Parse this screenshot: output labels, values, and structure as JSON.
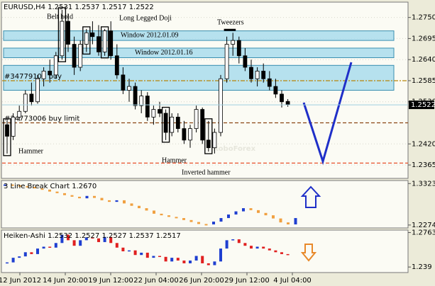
{
  "chart_data": [
    {
      "type": "candlestick",
      "title": "EURUSD,H4 1.2531 1.2537 1.2517 1.2522",
      "watermark": "RoboForex",
      "ylim": [
        1.233,
        1.279
      ],
      "yticks": [
        {
          "value": 1.275,
          "label": "1.2750"
        },
        1.2695,
        {
          "value": 1.264,
          "label": "1.2640"
        },
        1.2585,
        {
          "value": 1.253,
          "label": "1.2530"
        },
        {
          "value": 1.242,
          "label": "1.2420"
        },
        1.2365
      ],
      "current_price": 1.2522,
      "candle_up_color": "#ffffff",
      "candle_down_color": "#000000",
      "candles": [
        [
          1.247,
          1.248,
          1.2395,
          1.244
        ],
        [
          1.244,
          1.25,
          1.243,
          1.249
        ],
        [
          1.249,
          1.252,
          1.248,
          1.2505
        ],
        [
          1.2505,
          1.256,
          1.25,
          1.255
        ],
        [
          1.255,
          1.258,
          1.252,
          1.253
        ],
        [
          1.253,
          1.26,
          1.2525,
          1.259
        ],
        [
          1.259,
          1.262,
          1.257,
          1.261
        ],
        [
          1.261,
          1.264,
          1.258,
          1.26
        ],
        [
          1.26,
          1.266,
          1.259,
          1.265
        ],
        [
          1.265,
          1.277,
          1.264,
          1.274
        ],
        [
          1.274,
          1.276,
          1.266,
          1.268
        ],
        [
          1.268,
          1.27,
          1.26,
          1.262
        ],
        [
          1.262,
          1.269,
          1.261,
          1.268
        ],
        [
          1.268,
          1.272,
          1.266,
          1.271
        ],
        [
          1.271,
          1.274,
          1.268,
          1.27
        ],
        [
          1.27,
          1.273,
          1.265,
          1.266
        ],
        [
          1.266,
          1.272,
          1.265,
          1.2715
        ],
        [
          1.2715,
          1.274,
          1.264,
          1.265
        ],
        [
          1.265,
          1.268,
          1.259,
          1.26
        ],
        [
          1.26,
          1.262,
          1.255,
          1.256
        ],
        [
          1.256,
          1.259,
          1.253,
          1.257
        ],
        [
          1.257,
          1.258,
          1.251,
          1.252
        ],
        [
          1.252,
          1.256,
          1.25,
          1.2545
        ],
        [
          1.2545,
          1.2555,
          1.248,
          1.249
        ],
        [
          1.249,
          1.252,
          1.247,
          1.251
        ],
        [
          1.251,
          1.253,
          1.249,
          1.25
        ],
        [
          1.25,
          1.251,
          1.243,
          1.245
        ],
        [
          1.245,
          1.25,
          1.244,
          1.249
        ],
        [
          1.249,
          1.25,
          1.245,
          1.246
        ],
        [
          1.246,
          1.248,
          1.242,
          1.243
        ],
        [
          1.243,
          1.247,
          1.241,
          1.246
        ],
        [
          1.246,
          1.252,
          1.245,
          1.251
        ],
        [
          1.251,
          1.2515,
          1.242,
          1.243
        ],
        [
          1.243,
          1.248,
          1.24,
          1.241
        ],
        [
          1.241,
          1.246,
          1.2395,
          1.245
        ],
        [
          1.245,
          1.26,
          1.244,
          1.259
        ],
        [
          1.259,
          1.27,
          1.258,
          1.268
        ],
        [
          1.268,
          1.271,
          1.265,
          1.269
        ],
        [
          1.269,
          1.27,
          1.263,
          1.265
        ],
        [
          1.265,
          1.267,
          1.261,
          1.262
        ],
        [
          1.262,
          1.264,
          1.258,
          1.259
        ],
        [
          1.259,
          1.262,
          1.257,
          1.261
        ],
        [
          1.261,
          1.263,
          1.258,
          1.259
        ],
        [
          1.259,
          1.261,
          1.256,
          1.257
        ],
        [
          1.257,
          1.259,
          1.254,
          1.255
        ],
        [
          1.255,
          1.256,
          1.2515,
          1.253
        ],
        [
          1.2531,
          1.2537,
          1.2517,
          1.2522
        ]
      ],
      "zones": [
        {
          "label": "Window 2012.01.09",
          "range": [
            1.269,
            1.2715
          ]
        },
        {
          "label": "Window 2012.01.16",
          "range": [
            1.2645,
            1.267
          ]
        },
        {
          "range": [
            1.256,
            1.2625
          ]
        }
      ],
      "zone_color": "#a9dcec",
      "levels": [
        {
          "label": "#34779104 buy",
          "value": 1.2585,
          "color": "#b8860b"
        },
        {
          "label": "#34773006 buy limit",
          "value": 1.2475,
          "color": "#8b4513"
        },
        {
          "value": 1.237,
          "color": "#e8502a"
        }
      ],
      "annotations": [
        "Belt hold",
        "Long Legged Doji",
        "Tweezers",
        "Hammer",
        "Hammer",
        "Inverted hammer"
      ]
    },
    {
      "type": "line_break",
      "title": "3 Line Break Chart 1.2670",
      "ylim": [
        1.22,
        1.34
      ],
      "yticks": [
        1.3323,
        1.2274
      ],
      "up_color": "#1f3fd0",
      "down_color": "#f0a040",
      "values": [
        1.33,
        1.328,
        1.326,
        1.324,
        1.32,
        1.317,
        1.312,
        1.308,
        1.303,
        1.299,
        1.295,
        1.301,
        1.296,
        1.29,
        1.286,
        1.29,
        1.282,
        1.276,
        1.27,
        1.264,
        1.256,
        1.252,
        1.248,
        1.245,
        1.24,
        1.235,
        1.23,
        1.229,
        1.236,
        1.245,
        1.254,
        1.262,
        1.27,
        1.265,
        1.258,
        1.252,
        1.244,
        1.234,
        1.229,
        1.245
      ]
    },
    {
      "type": "heiken_ashi",
      "title": "Heiken-Ashi 1.2532 1.2527 1.2527 1.2537 1.2517",
      "ylim": [
        1.233,
        1.279
      ],
      "yticks": [
        1.2763,
        1.239
      ],
      "up_color": "#1f3fd0",
      "down_color": "#e02020",
      "values": [
        1.244,
        1.249,
        1.2505,
        1.255,
        1.253,
        1.259,
        1.261,
        1.26,
        1.265,
        1.274,
        1.268,
        1.262,
        1.268,
        1.271,
        1.27,
        1.266,
        1.2715,
        1.265,
        1.26,
        1.256,
        1.257,
        1.252,
        1.2545,
        1.249,
        1.251,
        1.25,
        1.245,
        1.249,
        1.246,
        1.243,
        1.246,
        1.251,
        1.243,
        1.241,
        1.245,
        1.259,
        1.268,
        1.269,
        1.265,
        1.262,
        1.259,
        1.261,
        1.259,
        1.257,
        1.255,
        1.253,
        1.2522
      ],
      "x_labels": [
        "12 Jun 2012",
        "14 Jun 20:00",
        "19 Jun 12:00",
        "22 Jun 04:00",
        "26 Jun 20:00",
        "29 Jun 12:00",
        "4 Jul 04:00"
      ]
    }
  ]
}
